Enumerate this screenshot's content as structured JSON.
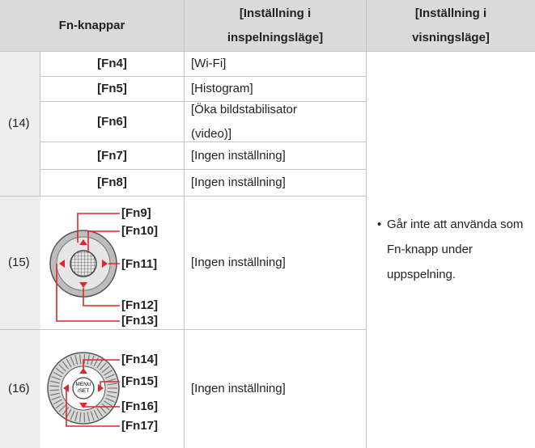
{
  "table": {
    "header": [
      "Fn-knappar",
      "[Inställning i inspelningsläge]",
      "[Inställning i visningsläge]"
    ],
    "groups": [
      {
        "label": "(14)",
        "rows": [
          {
            "button": "[Fn4]",
            "setting": "[Wi-Fi]"
          },
          {
            "button": "[Fn5]",
            "setting": "[Histogram]"
          },
          {
            "button": "[Fn6]",
            "setting": "[Öka bildstabilisator (video)]"
          },
          {
            "button": "[Fn7]",
            "setting": "[Ingen inställning]"
          },
          {
            "button": "[Fn8]",
            "setting": "[Ingen inställning]"
          }
        ]
      },
      {
        "label": "(15)",
        "buttons": [
          "[Fn9]",
          "[Fn10]",
          "[Fn11]",
          "[Fn12]",
          "[Fn13]"
        ],
        "setting": "[Ingen inställning]"
      },
      {
        "label": "(16)",
        "buttons": [
          "[Fn14]",
          "[Fn15]",
          "[Fn16]",
          "[Fn17]"
        ],
        "setting": "[Ingen inställning]",
        "icon_text": [
          "MENU",
          "/SET"
        ]
      }
    ],
    "playback_note": "Går inte att använda som Fn-knapp under uppspelning."
  }
}
